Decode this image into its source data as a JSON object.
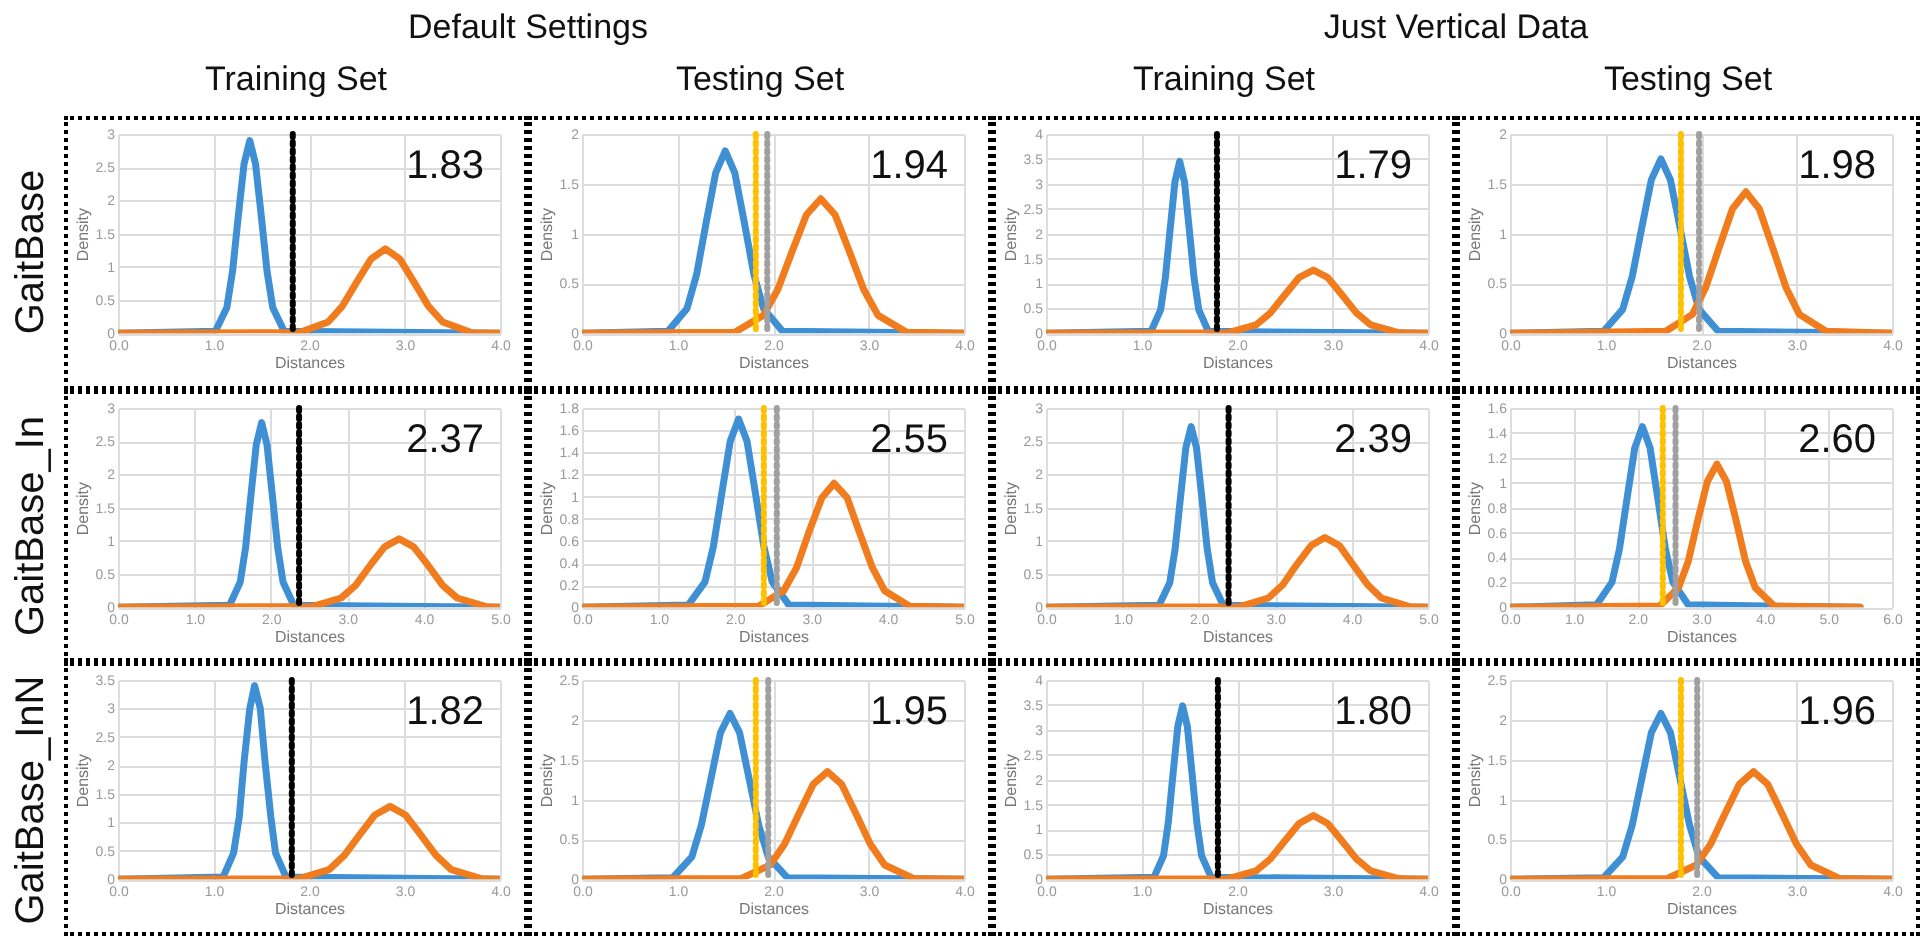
{
  "chart_data": [
    {
      "type": "other",
      "annotations": [
        "Default Settings",
        "Just Vertical Data",
        "Training Set",
        "Testing Set",
        "Training Set",
        "Testing Set",
        "GaitBase",
        "GaitBase_In",
        "GaitBase_InN"
      ]
    },
    {
      "type": "line",
      "xlabel": "Distances",
      "ylabel": "Density",
      "xlim": [
        0,
        4
      ],
      "xticks": [
        {
          "value": 0,
          "label": "0.0"
        },
        {
          "value": 1,
          "label": "1.0"
        },
        {
          "value": 2,
          "label": "2.0"
        },
        {
          "value": 3,
          "label": "3.0"
        },
        {
          "value": 4,
          "label": "4.0"
        }
      ],
      "ylim": [
        0,
        3
      ],
      "yticks": [
        0,
        0.5,
        1,
        1.5,
        2,
        2.5,
        3
      ],
      "grid": true,
      "series": [
        {
          "color": "#3e8fd4",
          "x": [
            0,
            1.02,
            1.14,
            1.2,
            1.26,
            1.32,
            1.38,
            1.44,
            1.5,
            1.56,
            1.62,
            1.74,
            4
          ],
          "values": [
            0,
            0.03,
            0.39,
            0.94,
            1.77,
            2.55,
            2.9,
            2.55,
            1.77,
            0.94,
            0.39,
            0.03,
            0
          ]
        },
        {
          "color": "#f07c1e",
          "x": [
            0,
            1.9,
            2.2,
            2.35,
            2.5,
            2.65,
            2.8,
            2.95,
            3.1,
            3.25,
            3.4,
            3.7,
            4
          ],
          "values": [
            0,
            0.01,
            0.17,
            0.41,
            0.77,
            1.12,
            1.27,
            1.12,
            0.77,
            0.41,
            0.17,
            0.01,
            0
          ]
        }
      ],
      "ref_lines": [
        {
          "axis": "x",
          "value": 1.83,
          "color": "#000000",
          "line_style": "dotted"
        }
      ],
      "annotations": [
        "1.83"
      ]
    },
    {
      "type": "line",
      "xlabel": "Distances",
      "ylabel": "Density",
      "xlim": [
        0,
        4
      ],
      "xticks": [
        {
          "value": 0,
          "label": "0.0"
        },
        {
          "value": 1,
          "label": "1.0"
        },
        {
          "value": 2,
          "label": "2.0"
        },
        {
          "value": 3,
          "label": "3.0"
        },
        {
          "value": 4,
          "label": "4.0"
        }
      ],
      "ylim": [
        0,
        2
      ],
      "yticks": [
        0,
        0.5,
        1,
        1.5,
        2
      ],
      "grid": true,
      "series": [
        {
          "color": "#3e8fd4",
          "x": [
            0,
            0.9,
            1.1,
            1.2,
            1.3,
            1.4,
            1.5,
            1.6,
            1.7,
            1.8,
            1.9,
            2.1,
            4
          ],
          "values": [
            0,
            0.02,
            0.25,
            0.59,
            1.11,
            1.61,
            1.83,
            1.61,
            1.11,
            0.59,
            0.25,
            0.02,
            0
          ]
        },
        {
          "color": "#f07c1e",
          "x": [
            0,
            1.6,
            1.9,
            2.05,
            2.2,
            2.35,
            2.5,
            2.65,
            2.8,
            2.95,
            3.1,
            3.4,
            4
          ],
          "values": [
            0,
            0.01,
            0.18,
            0.44,
            0.82,
            1.19,
            1.35,
            1.19,
            0.82,
            0.44,
            0.18,
            0.01,
            0
          ]
        }
      ],
      "ref_lines": [
        {
          "axis": "x",
          "value": 1.82,
          "color": "#ffc000",
          "line_style": "dotted"
        },
        {
          "axis": "x",
          "value": 1.94,
          "color": "#a0a0a0",
          "line_style": "dotted"
        }
      ],
      "annotations": [
        "1.94"
      ]
    },
    {
      "type": "line",
      "xlabel": "Distances",
      "ylabel": "Density",
      "xlim": [
        0,
        4
      ],
      "xticks": [
        {
          "value": 0,
          "label": "0.0"
        },
        {
          "value": 1,
          "label": "1.0"
        },
        {
          "value": 2,
          "label": "2.0"
        },
        {
          "value": 3,
          "label": "3.0"
        },
        {
          "value": 4,
          "label": "4.0"
        }
      ],
      "ylim": [
        0,
        4
      ],
      "yticks": [
        0,
        0.5,
        1,
        1.5,
        2,
        2.5,
        3,
        3.5,
        4
      ],
      "grid": true,
      "series": [
        {
          "color": "#3e8fd4",
          "x": [
            0,
            1.1,
            1.2,
            1.25,
            1.3,
            1.35,
            1.4,
            1.45,
            1.5,
            1.55,
            1.6,
            1.7,
            4
          ],
          "values": [
            0,
            0.04,
            0.47,
            1.12,
            2.09,
            3.04,
            3.45,
            3.04,
            2.09,
            1.12,
            0.47,
            0.04,
            0
          ]
        },
        {
          "color": "#f07c1e",
          "x": [
            0,
            1.9,
            2.2,
            2.35,
            2.5,
            2.65,
            2.8,
            2.95,
            3.1,
            3.25,
            3.4,
            3.7,
            4
          ],
          "values": [
            0,
            0.01,
            0.17,
            0.41,
            0.77,
            1.12,
            1.27,
            1.12,
            0.77,
            0.41,
            0.17,
            0.01,
            0
          ]
        }
      ],
      "ref_lines": [
        {
          "axis": "x",
          "value": 1.79,
          "color": "#000000",
          "line_style": "dotted"
        }
      ],
      "annotations": [
        "1.79"
      ]
    },
    {
      "type": "line",
      "xlabel": "Distances",
      "ylabel": "Density",
      "xlim": [
        0,
        4
      ],
      "xticks": [
        {
          "value": 0,
          "label": "0.0"
        },
        {
          "value": 1,
          "label": "1.0"
        },
        {
          "value": 2,
          "label": "2.0"
        },
        {
          "value": 3,
          "label": "3.0"
        },
        {
          "value": 4,
          "label": "4.0"
        }
      ],
      "ylim": [
        0,
        2
      ],
      "yticks": [
        0,
        0.5,
        1,
        1.5,
        2
      ],
      "grid": true,
      "series": [
        {
          "color": "#3e8fd4",
          "x": [
            0,
            0.98,
            1.18,
            1.28,
            1.38,
            1.48,
            1.58,
            1.68,
            1.78,
            1.88,
            1.98,
            2.18,
            4
          ],
          "values": [
            0,
            0.02,
            0.24,
            0.57,
            1.06,
            1.54,
            1.75,
            1.54,
            1.06,
            0.57,
            0.24,
            0.02,
            0
          ]
        },
        {
          "color": "#f07c1e",
          "x": [
            0,
            1.63,
            1.91,
            2.05,
            2.19,
            2.33,
            2.47,
            2.61,
            2.75,
            2.89,
            3.03,
            3.31,
            4
          ],
          "values": [
            0,
            0.02,
            0.19,
            0.46,
            0.86,
            1.25,
            1.42,
            1.25,
            0.86,
            0.46,
            0.19,
            0.02,
            0
          ]
        }
      ],
      "ref_lines": [
        {
          "axis": "x",
          "value": 1.79,
          "color": "#ffc000",
          "line_style": "dotted"
        },
        {
          "axis": "x",
          "value": 1.98,
          "color": "#a0a0a0",
          "line_style": "dotted"
        }
      ],
      "annotations": [
        "1.98"
      ]
    },
    {
      "type": "line",
      "xlabel": "Distances",
      "ylabel": "Density",
      "xlim": [
        0,
        5
      ],
      "xticks": [
        {
          "value": 0,
          "label": "0.0"
        },
        {
          "value": 1,
          "label": "1.0"
        },
        {
          "value": 2,
          "label": "2.0"
        },
        {
          "value": 3,
          "label": "3.0"
        },
        {
          "value": 4,
          "label": "4.0"
        },
        {
          "value": 5,
          "label": "5.0"
        }
      ],
      "ylim": [
        0,
        3
      ],
      "yticks": [
        0,
        0.5,
        1,
        1.5,
        2,
        2.5,
        3
      ],
      "grid": true,
      "series": [
        {
          "color": "#3e8fd4",
          "x": [
            0,
            1.46,
            1.6,
            1.67,
            1.74,
            1.81,
            1.88,
            1.95,
            2.02,
            2.09,
            2.16,
            2.3,
            5
          ],
          "values": [
            0,
            0.03,
            0.38,
            0.9,
            1.69,
            2.45,
            2.78,
            2.45,
            1.69,
            0.9,
            0.38,
            0.03,
            0
          ]
        },
        {
          "color": "#f07c1e",
          "x": [
            0,
            2.54,
            2.92,
            3.11,
            3.3,
            3.49,
            3.68,
            3.87,
            4.06,
            4.25,
            4.44,
            4.82,
            5
          ],
          "values": [
            0,
            0.01,
            0.14,
            0.33,
            0.63,
            0.91,
            1.03,
            0.91,
            0.63,
            0.33,
            0.14,
            0.01,
            0
          ]
        }
      ],
      "ref_lines": [
        {
          "axis": "x",
          "value": 2.37,
          "color": "#000000",
          "line_style": "dotted"
        }
      ],
      "annotations": [
        "2.37"
      ]
    },
    {
      "type": "line",
      "xlabel": "Distances",
      "ylabel": "Density",
      "xlim": [
        0,
        5
      ],
      "xticks": [
        {
          "value": 0,
          "label": "0.0"
        },
        {
          "value": 1,
          "label": "1.0"
        },
        {
          "value": 2,
          "label": "2.0"
        },
        {
          "value": 3,
          "label": "3.0"
        },
        {
          "value": 4,
          "label": "4.0"
        },
        {
          "value": 5,
          "label": "5.0"
        }
      ],
      "ylim": [
        0,
        1.8
      ],
      "yticks": [
        0,
        0.2,
        0.4,
        0.6,
        0.8,
        1,
        1.2,
        1.4,
        1.6,
        1.8
      ],
      "grid": true,
      "series": [
        {
          "color": "#3e8fd4",
          "x": [
            0,
            1.39,
            1.61,
            1.72,
            1.83,
            1.94,
            2.05,
            2.16,
            2.27,
            2.38,
            2.49,
            2.71,
            5
          ],
          "values": [
            0,
            0.02,
            0.23,
            0.55,
            1.03,
            1.5,
            1.7,
            1.5,
            1.03,
            0.55,
            0.23,
            0.02,
            0
          ]
        },
        {
          "color": "#f07c1e",
          "x": [
            0,
            2.31,
            2.64,
            2.81,
            2.97,
            3.14,
            3.3,
            3.47,
            3.63,
            3.8,
            3.96,
            4.29,
            5
          ],
          "values": [
            0,
            0.01,
            0.15,
            0.36,
            0.68,
            0.99,
            1.12,
            0.99,
            0.68,
            0.36,
            0.15,
            0.01,
            0
          ]
        }
      ],
      "ref_lines": [
        {
          "axis": "x",
          "value": 2.38,
          "color": "#ffc000",
          "line_style": "dotted"
        },
        {
          "axis": "x",
          "value": 2.55,
          "color": "#a0a0a0",
          "line_style": "dotted"
        }
      ],
      "annotations": [
        "2.55"
      ]
    },
    {
      "type": "line",
      "xlabel": "Distances",
      "ylabel": "Density",
      "xlim": [
        0,
        5
      ],
      "xticks": [
        {
          "value": 0,
          "label": "0.0"
        },
        {
          "value": 1,
          "label": "1.0"
        },
        {
          "value": 2,
          "label": "2.0"
        },
        {
          "value": 3,
          "label": "3.0"
        },
        {
          "value": 4,
          "label": "4.0"
        },
        {
          "value": 5,
          "label": "5.0"
        }
      ],
      "ylim": [
        0,
        3
      ],
      "yticks": [
        0,
        0.5,
        1,
        1.5,
        2,
        2.5,
        3
      ],
      "grid": true,
      "series": [
        {
          "color": "#3e8fd4",
          "x": [
            0,
            1.48,
            1.62,
            1.69,
            1.76,
            1.83,
            1.9,
            1.97,
            2.04,
            2.11,
            2.18,
            2.32,
            5
          ],
          "values": [
            0,
            0.03,
            0.37,
            0.88,
            1.65,
            2.4,
            2.72,
            2.4,
            1.65,
            0.88,
            0.37,
            0.03,
            0
          ]
        },
        {
          "color": "#f07c1e",
          "x": [
            0,
            2.54,
            2.91,
            3.1,
            3.28,
            3.47,
            3.65,
            3.84,
            4.02,
            4.21,
            4.39,
            4.76,
            5
          ],
          "values": [
            0,
            0.01,
            0.14,
            0.34,
            0.64,
            0.93,
            1.05,
            0.93,
            0.64,
            0.34,
            0.14,
            0.01,
            0
          ]
        }
      ],
      "ref_lines": [
        {
          "axis": "x",
          "value": 2.39,
          "color": "#000000",
          "line_style": "dotted"
        }
      ],
      "annotations": [
        "2.39"
      ]
    },
    {
      "type": "line",
      "xlabel": "Distances",
      "ylabel": "Density",
      "xlim": [
        0,
        6
      ],
      "xticks": [
        {
          "value": 0,
          "label": "0.0"
        },
        {
          "value": 1,
          "label": "1.0"
        },
        {
          "value": 2,
          "label": "2.0"
        },
        {
          "value": 3,
          "label": "3.0"
        },
        {
          "value": 4,
          "label": "4.0"
        },
        {
          "value": 5,
          "label": "5.0"
        },
        {
          "value": 6,
          "label": "6.0"
        }
      ],
      "ylim": [
        0,
        1.6
      ],
      "yticks": [
        0,
        0.2,
        0.4,
        0.6,
        0.8,
        1,
        1.2,
        1.4,
        1.6
      ],
      "grid": true,
      "series": [
        {
          "color": "#3e8fd4",
          "x": [
            0,
            1.36,
            1.6,
            1.72,
            1.84,
            1.96,
            2.08,
            2.2,
            2.32,
            2.44,
            2.56,
            2.8,
            5.5
          ],
          "values": [
            0,
            0.02,
            0.2,
            0.47,
            0.88,
            1.28,
            1.45,
            1.28,
            0.88,
            0.47,
            0.2,
            0.02,
            0
          ]
        },
        {
          "color": "#f07c1e",
          "x": [
            0,
            2.35,
            2.65,
            2.8,
            2.95,
            3.1,
            3.25,
            3.4,
            3.55,
            3.7,
            3.85,
            4.15,
            5.5
          ],
          "values": [
            0,
            0.01,
            0.16,
            0.37,
            0.7,
            1.01,
            1.15,
            1.01,
            0.7,
            0.37,
            0.16,
            0.01,
            0
          ]
        }
      ],
      "ref_lines": [
        {
          "axis": "x",
          "value": 2.4,
          "color": "#ffc000",
          "line_style": "dotted"
        },
        {
          "axis": "x",
          "value": 2.6,
          "color": "#a0a0a0",
          "line_style": "dotted"
        }
      ],
      "annotations": [
        "2.60"
      ]
    },
    {
      "type": "line",
      "xlabel": "Distances",
      "ylabel": "Density",
      "xlim": [
        0,
        4
      ],
      "xticks": [
        {
          "value": 0,
          "label": "0.0"
        },
        {
          "value": 1,
          "label": "1.0"
        },
        {
          "value": 2,
          "label": "2.0"
        },
        {
          "value": 3,
          "label": "3.0"
        },
        {
          "value": 4,
          "label": "4.0"
        }
      ],
      "ylim": [
        0,
        3.5
      ],
      "yticks": [
        0,
        0.5,
        1,
        1.5,
        2,
        2.5,
        3,
        3.5
      ],
      "grid": true,
      "series": [
        {
          "color": "#3e8fd4",
          "x": [
            0,
            1.1,
            1.21,
            1.27,
            1.32,
            1.38,
            1.43,
            1.49,
            1.54,
            1.6,
            1.65,
            1.76,
            4
          ],
          "values": [
            0,
            0.04,
            0.46,
            1.1,
            2.06,
            3.0,
            3.4,
            3.0,
            2.06,
            1.1,
            0.46,
            0.04,
            0
          ]
        },
        {
          "color": "#f07c1e",
          "x": [
            0,
            1.89,
            2.21,
            2.37,
            2.53,
            2.69,
            2.85,
            3.01,
            3.17,
            3.33,
            3.49,
            3.81,
            4
          ],
          "values": [
            0,
            0.01,
            0.17,
            0.42,
            0.78,
            1.13,
            1.28,
            1.13,
            0.78,
            0.42,
            0.17,
            0.01,
            0
          ]
        }
      ],
      "ref_lines": [
        {
          "axis": "x",
          "value": 1.82,
          "color": "#000000",
          "line_style": "dotted"
        }
      ],
      "annotations": [
        "1.82"
      ]
    },
    {
      "type": "line",
      "xlabel": "Distances",
      "ylabel": "Density",
      "xlim": [
        0,
        4
      ],
      "xticks": [
        {
          "value": 0,
          "label": "0.0"
        },
        {
          "value": 1,
          "label": "1.0"
        },
        {
          "value": 2,
          "label": "2.0"
        },
        {
          "value": 3,
          "label": "3.0"
        },
        {
          "value": 4,
          "label": "4.0"
        }
      ],
      "ylim": [
        0,
        2.5
      ],
      "yticks": [
        0,
        0.5,
        1,
        1.5,
        2,
        2.5
      ],
      "grid": true,
      "series": [
        {
          "color": "#3e8fd4",
          "x": [
            0,
            0.95,
            1.15,
            1.25,
            1.35,
            1.45,
            1.55,
            1.65,
            1.75,
            1.85,
            1.95,
            2.15,
            4
          ],
          "values": [
            0,
            0.02,
            0.28,
            0.68,
            1.26,
            1.84,
            2.08,
            1.84,
            1.26,
            0.68,
            0.28,
            0.02,
            0
          ]
        },
        {
          "color": "#f07c1e",
          "x": [
            0,
            1.67,
            1.97,
            2.12,
            2.27,
            2.42,
            2.57,
            2.72,
            2.87,
            3.02,
            3.17,
            3.47,
            4
          ],
          "values": [
            0,
            0.01,
            0.18,
            0.44,
            0.82,
            1.19,
            1.35,
            1.19,
            0.82,
            0.44,
            0.18,
            0.01,
            0
          ]
        }
      ],
      "ref_lines": [
        {
          "axis": "x",
          "value": 1.82,
          "color": "#ffc000",
          "line_style": "dotted"
        },
        {
          "axis": "x",
          "value": 1.95,
          "color": "#a0a0a0",
          "line_style": "dotted"
        }
      ],
      "annotations": [
        "1.95"
      ]
    },
    {
      "type": "line",
      "xlabel": "Distances",
      "ylabel": "Density",
      "xlim": [
        0,
        4
      ],
      "xticks": [
        {
          "value": 0,
          "label": "0.0"
        },
        {
          "value": 1,
          "label": "1.0"
        },
        {
          "value": 2,
          "label": "2.0"
        },
        {
          "value": 3,
          "label": "3.0"
        },
        {
          "value": 4,
          "label": "4.0"
        }
      ],
      "ylim": [
        0,
        4
      ],
      "yticks": [
        0,
        0.5,
        1,
        1.5,
        2,
        2.5,
        3,
        3.5,
        4
      ],
      "grid": true,
      "series": [
        {
          "color": "#3e8fd4",
          "x": [
            0,
            1.13,
            1.23,
            1.28,
            1.33,
            1.38,
            1.43,
            1.48,
            1.53,
            1.58,
            1.63,
            1.73,
            4
          ],
          "values": [
            0,
            0.04,
            0.47,
            1.13,
            2.11,
            3.07,
            3.48,
            3.07,
            2.11,
            1.13,
            0.47,
            0.04,
            0
          ]
        },
        {
          "color": "#f07c1e",
          "x": [
            0,
            1.9,
            2.2,
            2.35,
            2.5,
            2.65,
            2.8,
            2.95,
            3.1,
            3.25,
            3.4,
            3.7,
            4
          ],
          "values": [
            0,
            0.01,
            0.17,
            0.41,
            0.77,
            1.12,
            1.28,
            1.12,
            0.77,
            0.41,
            0.17,
            0.01,
            0
          ]
        }
      ],
      "ref_lines": [
        {
          "axis": "x",
          "value": 1.8,
          "color": "#000000",
          "line_style": "dotted"
        }
      ],
      "annotations": [
        "1.80"
      ]
    },
    {
      "type": "line",
      "xlabel": "Distances",
      "ylabel": "Density",
      "xlim": [
        0,
        4
      ],
      "xticks": [
        {
          "value": 0,
          "label": "0.0"
        },
        {
          "value": 1,
          "label": "1.0"
        },
        {
          "value": 2,
          "label": "2.0"
        },
        {
          "value": 3,
          "label": "3.0"
        },
        {
          "value": 4,
          "label": "4.0"
        }
      ],
      "ylim": [
        0,
        2.5
      ],
      "yticks": [
        0,
        0.5,
        1,
        1.5,
        2,
        2.5
      ],
      "grid": true,
      "series": [
        {
          "color": "#3e8fd4",
          "x": [
            0,
            0.98,
            1.18,
            1.28,
            1.38,
            1.48,
            1.58,
            1.68,
            1.78,
            1.88,
            1.98,
            2.18,
            4
          ],
          "values": [
            0,
            0.02,
            0.28,
            0.68,
            1.26,
            1.84,
            2.08,
            1.84,
            1.26,
            0.68,
            0.28,
            0.02,
            0
          ]
        },
        {
          "color": "#f07c1e",
          "x": [
            0,
            1.65,
            1.95,
            2.1,
            2.25,
            2.4,
            2.55,
            2.7,
            2.85,
            3.0,
            3.15,
            3.45,
            4
          ],
          "values": [
            0,
            0.01,
            0.18,
            0.44,
            0.82,
            1.19,
            1.35,
            1.19,
            0.82,
            0.44,
            0.18,
            0.01,
            0
          ]
        }
      ],
      "ref_lines": [
        {
          "axis": "x",
          "value": 1.79,
          "color": "#ffc000",
          "line_style": "dotted"
        },
        {
          "axis": "x",
          "value": 1.96,
          "color": "#a0a0a0",
          "line_style": "dotted"
        }
      ],
      "annotations": [
        "1.96"
      ]
    }
  ]
}
